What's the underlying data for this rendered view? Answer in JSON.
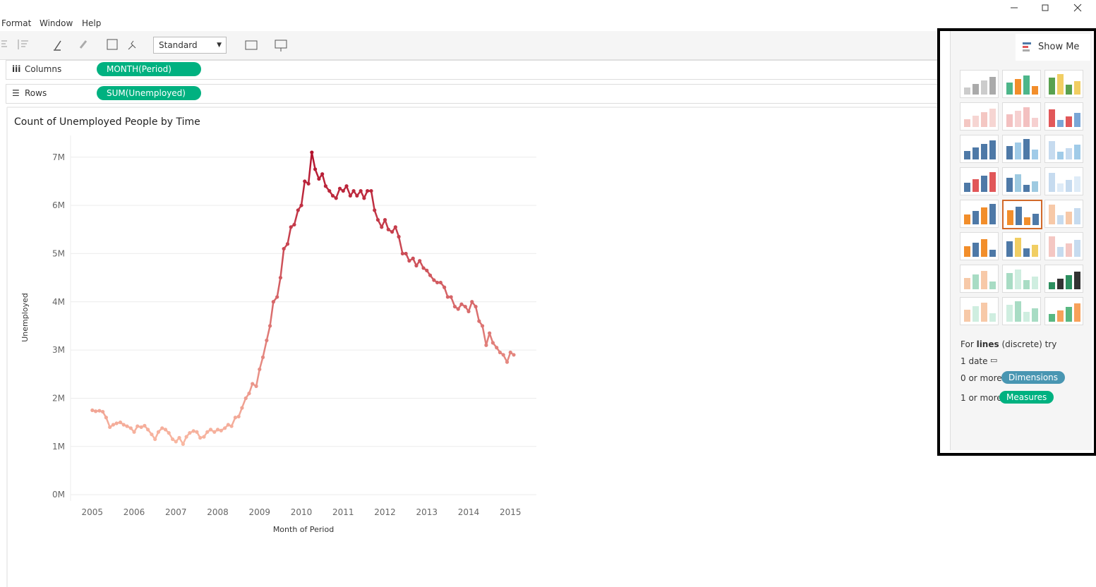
{
  "menu": [
    "Format",
    "Window",
    "Help"
  ],
  "toolbar": {
    "format_select": "Standard"
  },
  "shelves": {
    "columns_label": "Columns",
    "columns_pill": "MONTH(Period)",
    "rows_label": "Rows",
    "rows_pill": "SUM(Unemployed)"
  },
  "chart_data": {
    "type": "line",
    "title": "Count of Unemployed People by Time",
    "x_label": "Month of Period",
    "y_label": "Unemployed",
    "x": [
      2005,
      2005.08,
      2005.17,
      2005.25,
      2005.33,
      2005.42,
      2005.5,
      2005.58,
      2005.67,
      2005.75,
      2005.83,
      2005.92,
      2006,
      2006.08,
      2006.17,
      2006.25,
      2006.33,
      2006.42,
      2006.5,
      2006.58,
      2006.67,
      2006.75,
      2006.83,
      2006.92,
      2007,
      2007.08,
      2007.17,
      2007.25,
      2007.33,
      2007.42,
      2007.5,
      2007.58,
      2007.67,
      2007.75,
      2007.83,
      2007.92,
      2008,
      2008.08,
      2008.17,
      2008.25,
      2008.33,
      2008.42,
      2008.5,
      2008.58,
      2008.67,
      2008.75,
      2008.83,
      2008.92,
      2009,
      2009.08,
      2009.17,
      2009.25,
      2009.33,
      2009.42,
      2009.5,
      2009.58,
      2009.67,
      2009.75,
      2009.83,
      2009.92,
      2010,
      2010.08,
      2010.17,
      2010.25,
      2010.33,
      2010.42,
      2010.5,
      2010.58,
      2010.67,
      2010.75,
      2010.83,
      2010.92,
      2011,
      2011.08,
      2011.17,
      2011.25,
      2011.33,
      2011.42,
      2011.5,
      2011.58,
      2011.67,
      2011.75,
      2011.83,
      2011.92,
      2012,
      2012.08,
      2012.17,
      2012.25,
      2012.33,
      2012.42,
      2012.5,
      2012.58,
      2012.67,
      2012.75,
      2012.83,
      2012.92,
      2013,
      2013.08,
      2013.17,
      2013.25,
      2013.33,
      2013.42,
      2013.5,
      2013.58,
      2013.67,
      2013.75,
      2013.83,
      2013.92,
      2014,
      2014.08,
      2014.17,
      2014.25,
      2014.33,
      2014.42,
      2014.5,
      2014.58,
      2014.67,
      2014.75,
      2014.83,
      2014.92,
      2015,
      2015.08
    ],
    "values": [
      1750000,
      1730000,
      1740000,
      1720000,
      1600000,
      1400000,
      1450000,
      1480000,
      1500000,
      1450000,
      1420000,
      1380000,
      1300000,
      1420000,
      1400000,
      1430000,
      1350000,
      1250000,
      1150000,
      1300000,
      1380000,
      1350000,
      1280000,
      1150000,
      1100000,
      1180000,
      1050000,
      1200000,
      1280000,
      1320000,
      1300000,
      1180000,
      1200000,
      1300000,
      1350000,
      1300000,
      1350000,
      1330000,
      1380000,
      1450000,
      1420000,
      1600000,
      1620000,
      1800000,
      2000000,
      2100000,
      2300000,
      2250000,
      2600000,
      2850000,
      3200000,
      3500000,
      4000000,
      4100000,
      4500000,
      5100000,
      5200000,
      5550000,
      5600000,
      5900000,
      6000000,
      6500000,
      6450000,
      7100000,
      6750000,
      6550000,
      6650000,
      6400000,
      6300000,
      6200000,
      6150000,
      6350000,
      6300000,
      6400000,
      6200000,
      6300000,
      6200000,
      6300000,
      6150000,
      6300000,
      6300000,
      5900000,
      5700000,
      5550000,
      5700000,
      5500000,
      5450000,
      5550000,
      5350000,
      5000000,
      5000000,
      4850000,
      4900000,
      4750000,
      4850000,
      4700000,
      4650000,
      4550000,
      4450000,
      4400000,
      4400000,
      4300000,
      4100000,
      4100000,
      3900000,
      3850000,
      3950000,
      3900000,
      3800000,
      4000000,
      3900000,
      3600000,
      3500000,
      3100000,
      3350000,
      3150000,
      3050000,
      2950000,
      2900000,
      2750000,
      2950000,
      2900000
    ],
    "color_range": [
      "#f9b8a2",
      "#b3122d"
    ],
    "xlim": [
      2004.48,
      2015.62
    ],
    "xticks": [
      2005,
      2006,
      2007,
      2008,
      2009,
      2010,
      2011,
      2012,
      2013,
      2014,
      2015
    ],
    "ylim": [
      -130000,
      7450000
    ],
    "yticks": [
      {
        "value": 0,
        "label": "0M"
      },
      {
        "value": 1000000,
        "label": "1M"
      },
      {
        "value": 2000000,
        "label": "2M"
      },
      {
        "value": 3000000,
        "label": "3M"
      },
      {
        "value": 4000000,
        "label": "4M"
      },
      {
        "value": 5000000,
        "label": "5M"
      },
      {
        "value": 6000000,
        "label": "6M"
      },
      {
        "value": 7000000,
        "label": "7M"
      }
    ],
    "grid": true
  },
  "show_me": {
    "title": "Show Me",
    "hint_pre": "For",
    "hint_bold": "lines",
    "hint_post": "(discrete) try",
    "req_date": "1 date",
    "req_dim": "0 or more",
    "dim_pill": "Dimensions",
    "req_meas": "1 or more",
    "meas_pill": "Measures"
  }
}
